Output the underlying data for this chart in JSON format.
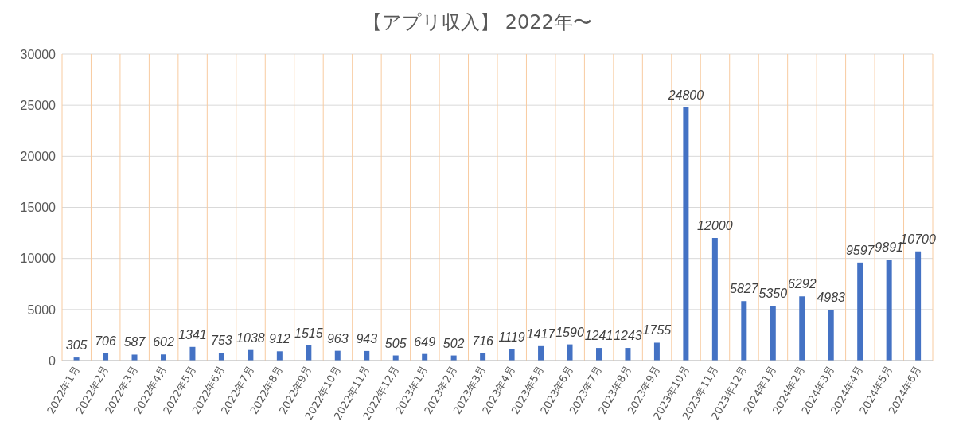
{
  "chart_data": {
    "type": "bar",
    "title": "【アプリ収入】 2022年〜",
    "categories": [
      "2022年1月",
      "2022年2月",
      "2022年3月",
      "2022年4月",
      "2022年5月",
      "2022年6月",
      "2022年7月",
      "2022年8月",
      "2022年9月",
      "2022年10月",
      "2022年11月",
      "2022年12月",
      "2023年1月",
      "2023年2月",
      "2023年3月",
      "2023年4月",
      "2023年5月",
      "2023年6月",
      "2023年7月",
      "2023年8月",
      "2023年9月",
      "2023年10月",
      "2023年11月",
      "2023年12月",
      "2024年1月",
      "2024年2月",
      "2024年3月",
      "2024年4月",
      "2024年5月",
      "2024年6月"
    ],
    "values": [
      305,
      706,
      587,
      602,
      1341,
      753,
      1038,
      912,
      1515,
      963,
      943,
      505,
      649,
      502,
      716,
      1119,
      1417,
      1590,
      1241,
      1243,
      1755,
      24800,
      12000,
      5827,
      5350,
      6292,
      4983,
      9597,
      9891,
      10700
    ],
    "color": "#4472c4",
    "ylim": [
      0,
      30000
    ],
    "yticks": [
      0,
      5000,
      10000,
      15000,
      20000,
      25000,
      30000
    ],
    "grid": true,
    "data_labels": true
  }
}
